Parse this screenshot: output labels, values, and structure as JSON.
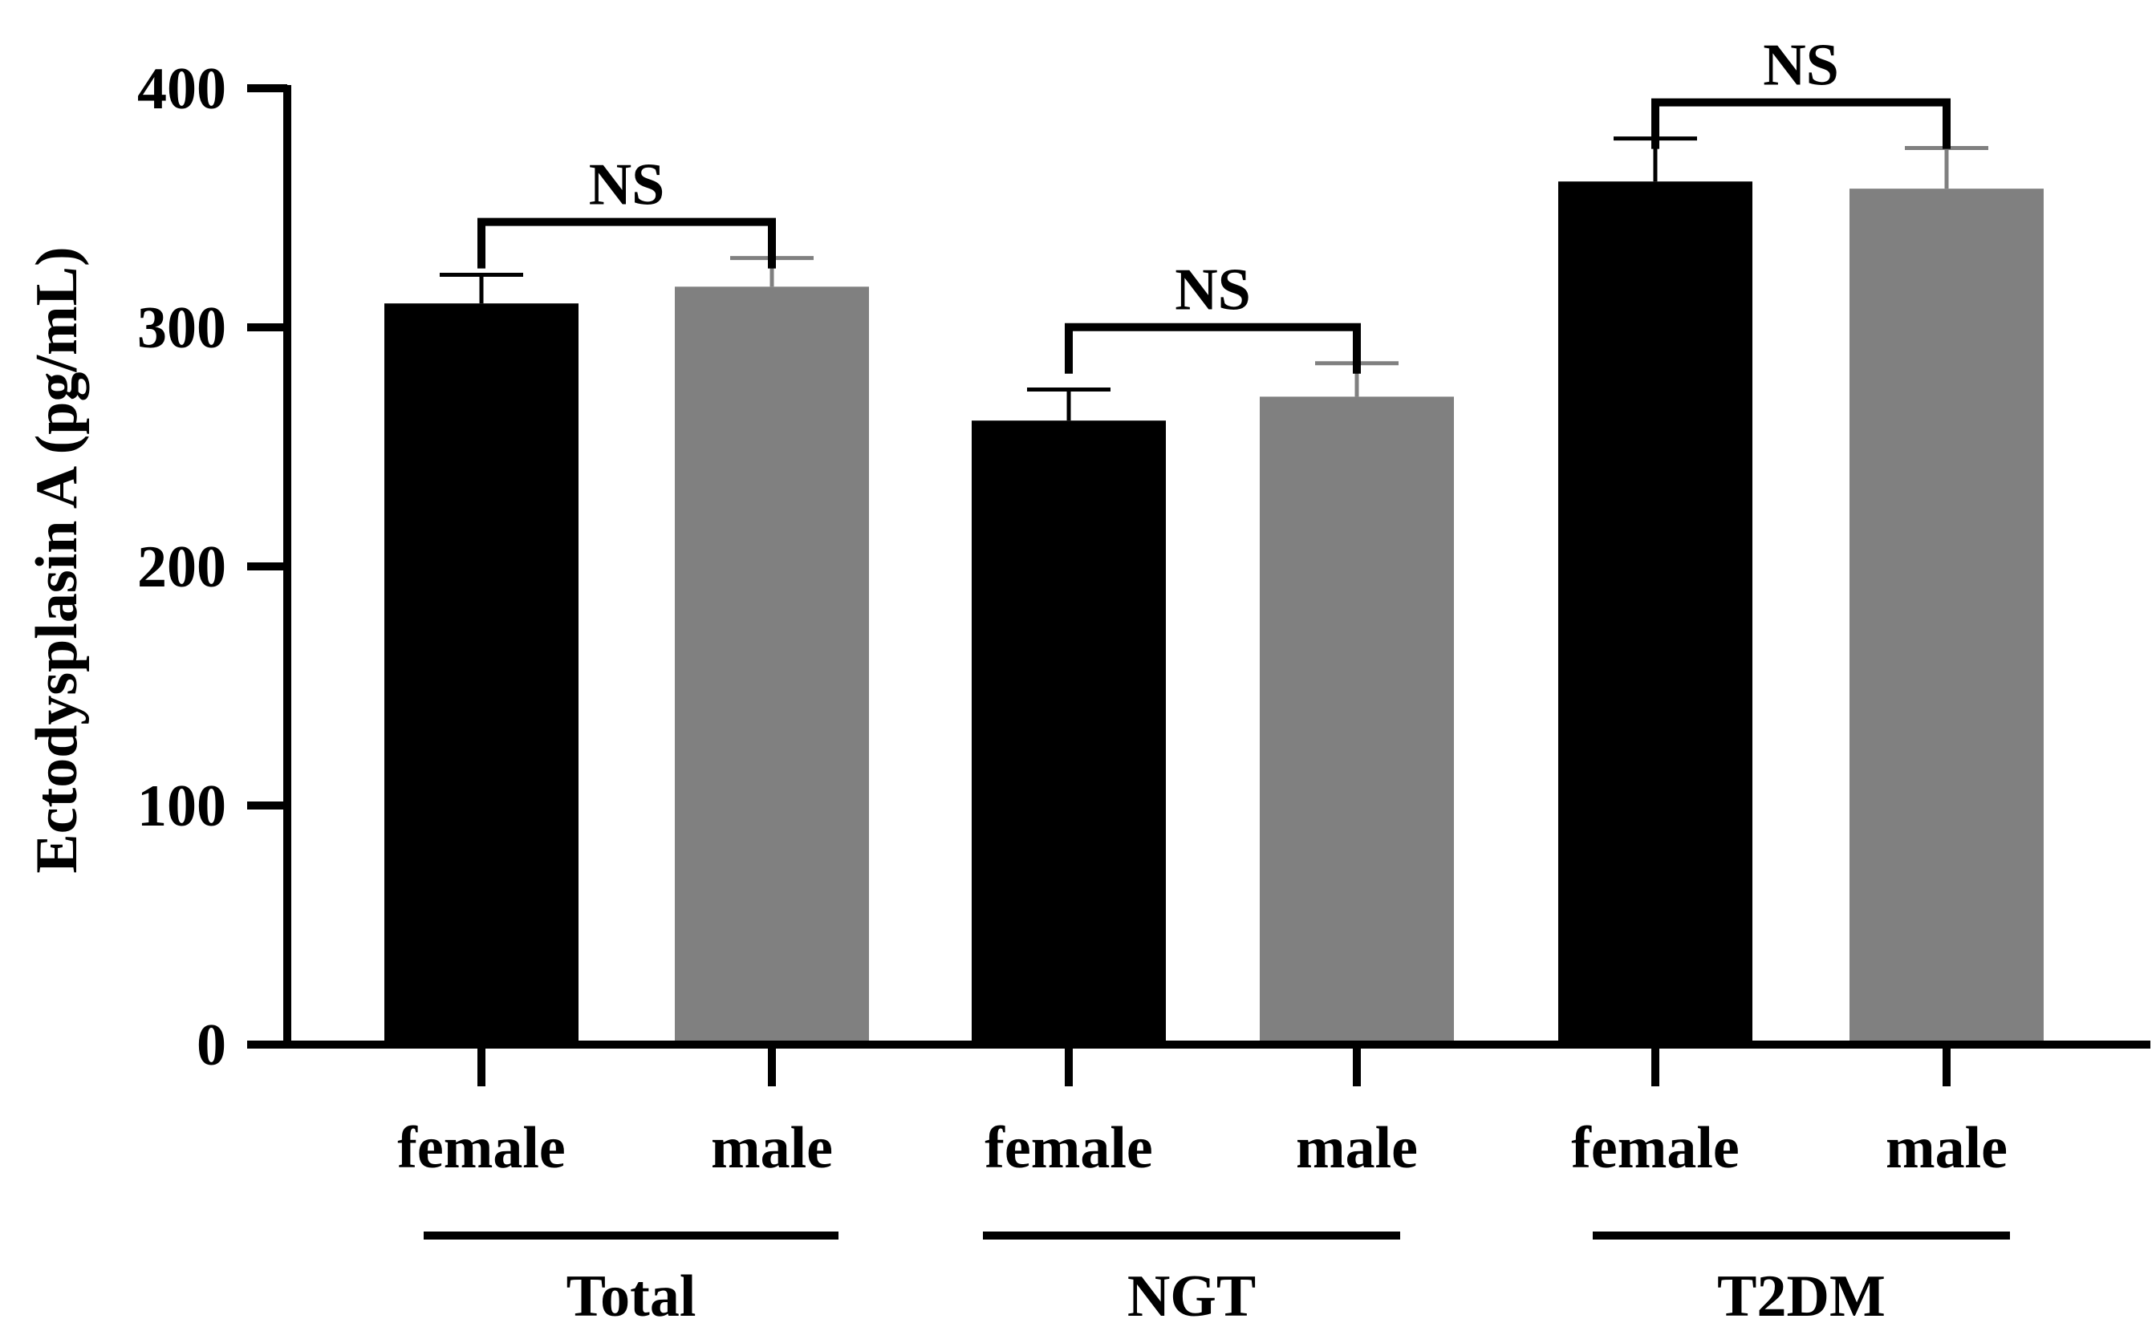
{
  "chart_data": {
    "type": "bar",
    "ylabel": "Ectodysplasin A (pg/mL)",
    "ylim": [
      0,
      400
    ],
    "yticks": [
      "0",
      "100",
      "200",
      "300",
      "400"
    ],
    "grid": false,
    "legend": "none",
    "groups": [
      {
        "label": "Total",
        "significance": "NS",
        "bars": [
          {
            "label": "female",
            "value": 310,
            "error": 12,
            "color": "#000000"
          },
          {
            "label": "male",
            "value": 317,
            "error": 12,
            "color": "#808080"
          }
        ]
      },
      {
        "label": "NGT",
        "significance": "NS",
        "bars": [
          {
            "label": "female",
            "value": 261,
            "error": 13,
            "color": "#000000"
          },
          {
            "label": "male",
            "value": 271,
            "error": 14,
            "color": "#808080"
          }
        ]
      },
      {
        "label": "T2DM",
        "significance": "NS",
        "bars": [
          {
            "label": "female",
            "value": 361,
            "error": 18,
            "color": "#000000"
          },
          {
            "label": "male",
            "value": 358,
            "error": 17,
            "color": "#808080"
          }
        ]
      }
    ]
  }
}
